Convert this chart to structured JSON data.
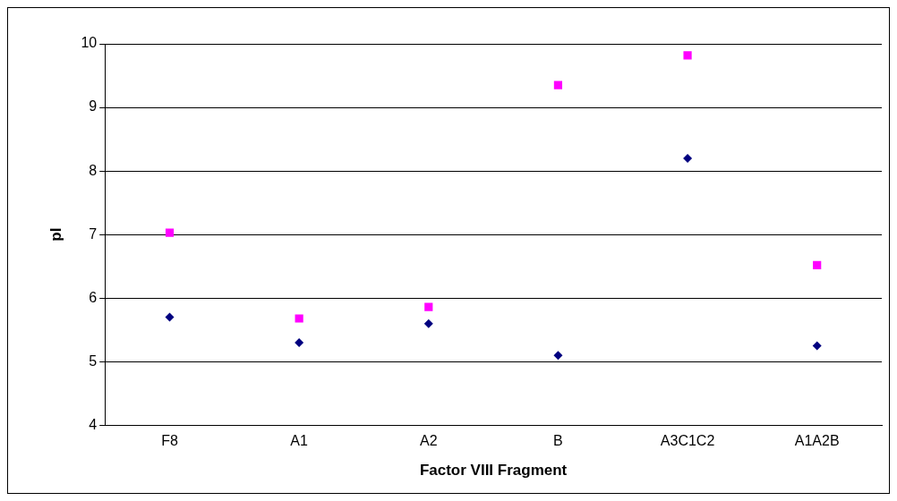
{
  "chart_data": {
    "type": "scatter",
    "xlabel": "Factor VIII Fragment",
    "ylabel": "pI",
    "categories": [
      "F8",
      "A1",
      "A2",
      "B",
      "A3C1C2",
      "A1A2B"
    ],
    "series": [
      {
        "color": "#000080",
        "marker": "diamond",
        "values": [
          5.7,
          5.3,
          5.6,
          5.1,
          8.2,
          5.25
        ]
      },
      {
        "color": "#ff00ff",
        "marker": "square",
        "values": [
          7.03,
          5.68,
          5.86,
          9.35,
          9.82,
          6.52
        ]
      }
    ],
    "ylim": [
      4,
      10
    ],
    "yticks": [
      4,
      5,
      6,
      7,
      8,
      9,
      10
    ],
    "grid": "y",
    "legend": false
  }
}
